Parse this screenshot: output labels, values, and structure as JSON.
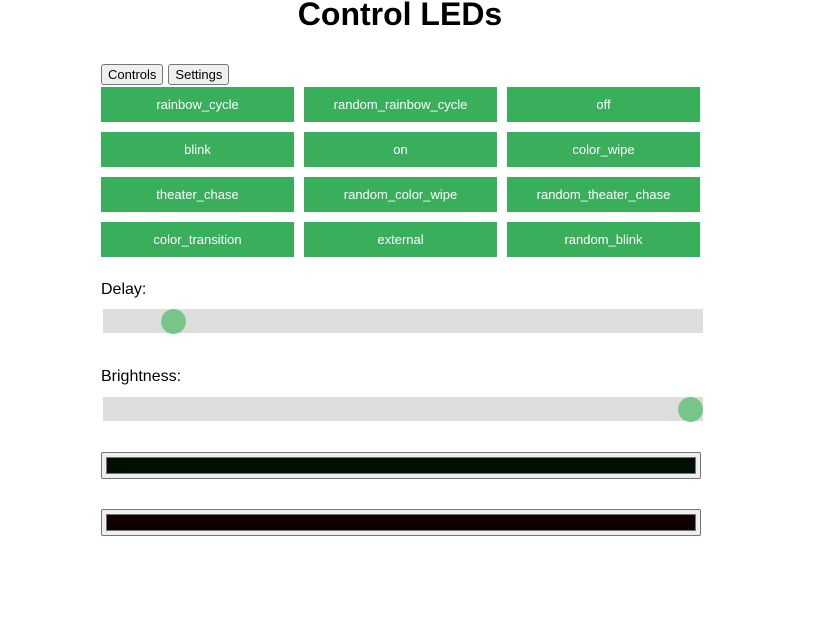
{
  "title": "Control LEDs",
  "tabs": [
    "Controls",
    "Settings"
  ],
  "modes": [
    "rainbow_cycle",
    "random_rainbow_cycle",
    "off",
    "blink",
    "on",
    "color_wipe",
    "theater_chase",
    "random_color_wipe",
    "random_theater_chase",
    "color_transition",
    "external",
    "random_blink"
  ],
  "delay": {
    "label": "Delay:",
    "value_percent": 10
  },
  "brightness": {
    "label": "Brightness:",
    "value_percent": 100
  },
  "colors": [
    "#001000",
    "#100000"
  ],
  "accent": "#39af5b"
}
